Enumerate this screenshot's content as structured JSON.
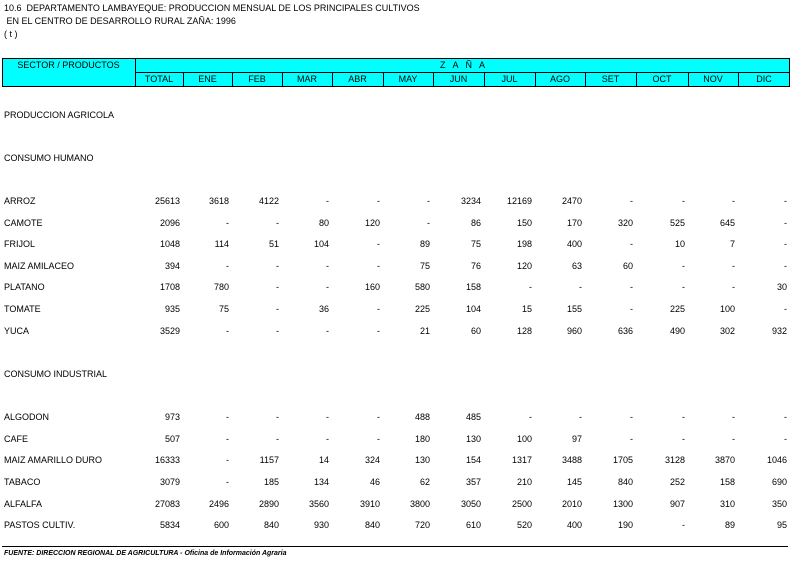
{
  "header": {
    "lines": [
      "10.6  DEPARTAMENTO LAMBAYEQUE: PRODUCCION MENSUAL DE LOS PRINCIPALES CULTIVOS",
      " EN EL CENTRO DE DESARROLLO RURAL ZAÑA: 1996",
      "( t )"
    ]
  },
  "table": {
    "corner": "SECTOR / PRODUCTOS",
    "group_header": "Z   A   Ñ   A",
    "columns": [
      "TOTAL",
      "ENE",
      "FEB",
      "MAR",
      "ABR",
      "MAY",
      "JUN",
      "JUL",
      "AGO",
      "SET",
      "OCT",
      "NOV",
      "DIC"
    ],
    "heading": "PRODUCCION AGRICOLA",
    "groups": [
      {
        "label": "CONSUMO HUMANO",
        "rows": [
          {
            "label": "ARROZ",
            "cells": [
              25613,
              3618,
              4122,
              "-",
              "-",
              "-",
              3234,
              12169,
              2470,
              "-",
              "-",
              "-",
              "-"
            ]
          },
          {
            "label": "CAMOTE",
            "cells": [
              2096,
              "-",
              "-",
              80,
              120,
              "-",
              86,
              150,
              170,
              320,
              525,
              645,
              "-"
            ]
          },
          {
            "label": "FRIJOL",
            "cells": [
              1048,
              114,
              51,
              104,
              "-",
              89,
              75,
              198,
              400,
              "-",
              10,
              7,
              "-"
            ]
          },
          {
            "label": "MAIZ AMILACEO",
            "cells": [
              394,
              "-",
              "-",
              "-",
              "-",
              75,
              76,
              120,
              63,
              60,
              "-",
              "-",
              "-"
            ]
          },
          {
            "label": "PLATANO",
            "cells": [
              1708,
              780,
              "-",
              "-",
              160,
              580,
              158,
              "-",
              "-",
              "-",
              "-",
              "-",
              30
            ]
          },
          {
            "label": "TOMATE",
            "cells": [
              935,
              75,
              "-",
              36,
              "-",
              225,
              104,
              15,
              155,
              "-",
              225,
              100,
              "-"
            ]
          },
          {
            "label": "YUCA",
            "cells": [
              3529,
              "-",
              "-",
              "-",
              "-",
              21,
              60,
              128,
              960,
              636,
              490,
              302,
              932
            ]
          }
        ]
      },
      {
        "label": "CONSUMO INDUSTRIAL",
        "rows": [
          {
            "label": "ALGODON",
            "cells": [
              973,
              "-",
              "-",
              "-",
              "-",
              488,
              485,
              "-",
              "-",
              "-",
              "-",
              "-",
              "-"
            ]
          },
          {
            "label": "CAFE",
            "cells": [
              507,
              "-",
              "-",
              "-",
              "-",
              180,
              130,
              100,
              97,
              "-",
              "-",
              "-",
              "-"
            ]
          },
          {
            "label": "MAIZ AMARILLO DURO",
            "cells": [
              16333,
              "-",
              1157,
              14,
              324,
              130,
              154,
              1317,
              3488,
              1705,
              3128,
              3870,
              1046
            ]
          },
          {
            "label": "TABACO",
            "cells": [
              3079,
              "-",
              185,
              134,
              46,
              62,
              357,
              210,
              145,
              840,
              252,
              158,
              690
            ]
          },
          {
            "label": "ALFALFA",
            "cells": [
              27083,
              2496,
              2890,
              3560,
              3910,
              3800,
              3050,
              2500,
              2010,
              1300,
              907,
              310,
              350
            ]
          },
          {
            "label": "PASTOS CULTIV.",
            "cells": [
              5834,
              600,
              840,
              930,
              840,
              720,
              610,
              520,
              400,
              190,
              "-",
              89,
              95
            ]
          }
        ]
      }
    ]
  },
  "footer": "FUENTE: DIRECCION REGIONAL DE AGRICULTURA - Oficina de Información Agraria"
}
